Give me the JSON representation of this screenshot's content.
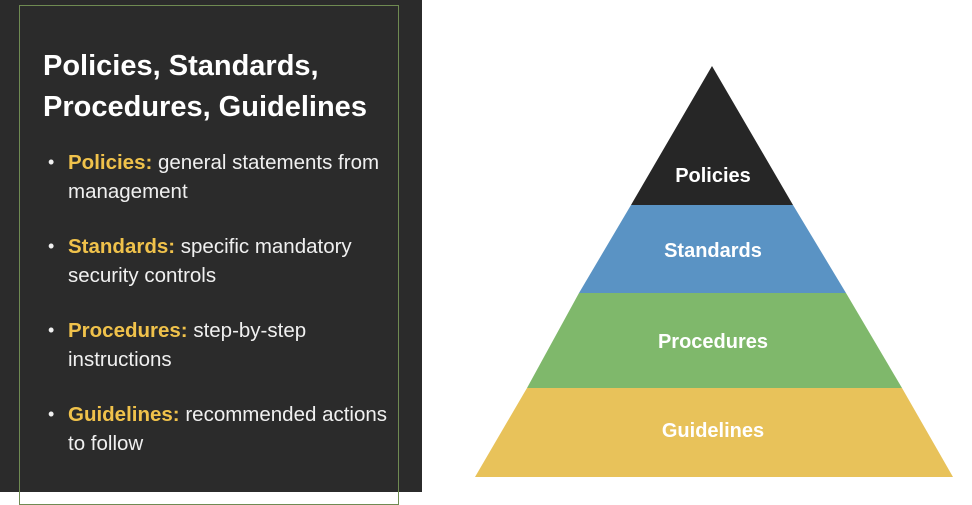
{
  "slide": {
    "title": "Policies, Standards, Procedures, Guidelines"
  },
  "bullets": [
    {
      "term": "Policies:",
      "text": " general statements from management"
    },
    {
      "term": "Standards:",
      "text": " specific mandatory security controls"
    },
    {
      "term": "Procedures:",
      "text": " step-by-step instructions"
    },
    {
      "term": "Guidelines:",
      "text": " recommended actions to follow"
    }
  ],
  "pyramid": {
    "tiers": [
      {
        "label": "Policies",
        "color": "#262626"
      },
      {
        "label": "Standards",
        "color": "#5a93c4"
      },
      {
        "label": "Procedures",
        "color": "#7fb86b"
      },
      {
        "label": "Guidelines",
        "color": "#e8c25a"
      }
    ]
  },
  "colors": {
    "panel_background": "#2b2b2b",
    "term_highlight": "#f0c24b",
    "frame_border": "#6f8a52"
  }
}
